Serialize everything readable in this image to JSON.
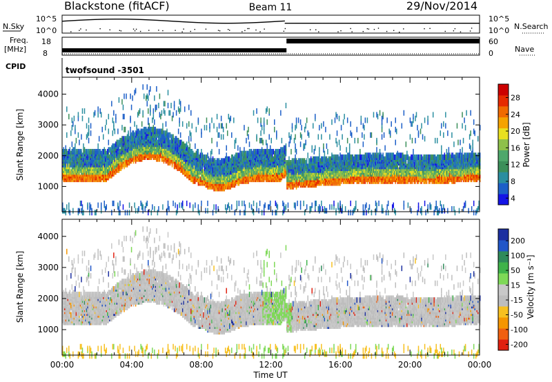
{
  "header": {
    "radar": "Blackstone (fitACF)",
    "beam": "Beam 11",
    "date": "29/Nov/2014"
  },
  "aux_panels": {
    "left_sky_label": "N.Sky",
    "sky_ticks": [
      "10^5",
      "10^0"
    ],
    "right_search_label": "N.Search",
    "search_ticks": [
      "10^5",
      "10^0"
    ],
    "freq_label_line1": "Freq.",
    "freq_label_line2": "[MHz]",
    "freq_ticks": [
      "18",
      "8"
    ],
    "nave_label": "Nave",
    "nave_ticks": [
      "60",
      "0"
    ],
    "cpid_label": "CPID",
    "cpid_value": "twofsound -3501"
  },
  "colors": {
    "power_scale": [
      "#1414e6",
      "#1c5fc8",
      "#2a8ea0",
      "#3b8f5a",
      "#4ea86b",
      "#8ec04a",
      "#e8e020",
      "#f5a300",
      "#f06a00",
      "#e62a00",
      "#cc0000"
    ],
    "velocity_scale": [
      "#1c2fa0",
      "#2156c8",
      "#2f8a5a",
      "#3fb34a",
      "#7ed957",
      "#c8c8c8",
      "#bdbdbd",
      "#f7c020",
      "#f59600",
      "#f06010",
      "#e02010"
    ]
  },
  "chart_data": [
    {
      "type": "heatmap",
      "name": "power-panel",
      "ylabel": "Slant Range [km]",
      "ylim": [
        180,
        4550
      ],
      "yticks": [
        "4000",
        "3000",
        "2000",
        "1000"
      ],
      "ytick_values": [
        4000,
        3000,
        2000,
        1000
      ],
      "xlim": [
        0,
        24
      ],
      "colorbar_label": "Power [dB]",
      "colorbar_ticks": [
        "28",
        "24",
        "20",
        "16",
        "12",
        "8",
        "4"
      ],
      "colorbar_range": [
        0,
        30
      ]
    },
    {
      "type": "heatmap",
      "name": "velocity-panel",
      "ylabel": "Slant Range [km]",
      "ylim": [
        180,
        4550
      ],
      "yticks": [
        "4000",
        "3000",
        "2000",
        "1000"
      ],
      "ytick_values": [
        4000,
        3000,
        2000,
        1000
      ],
      "xlim": [
        0,
        24
      ],
      "xlabel": "Time UT",
      "xticks": [
        "00:00",
        "04:00",
        "08:00",
        "12:00",
        "16:00",
        "20:00",
        "00:00"
      ],
      "xtick_values": [
        0,
        4,
        8,
        12,
        16,
        20,
        24
      ],
      "colorbar_label": "Velocity [m s⁻¹]",
      "colorbar_ticks": [
        "200",
        "100",
        "50",
        "15",
        "-15",
        "-50",
        "-100",
        "-200"
      ]
    }
  ]
}
